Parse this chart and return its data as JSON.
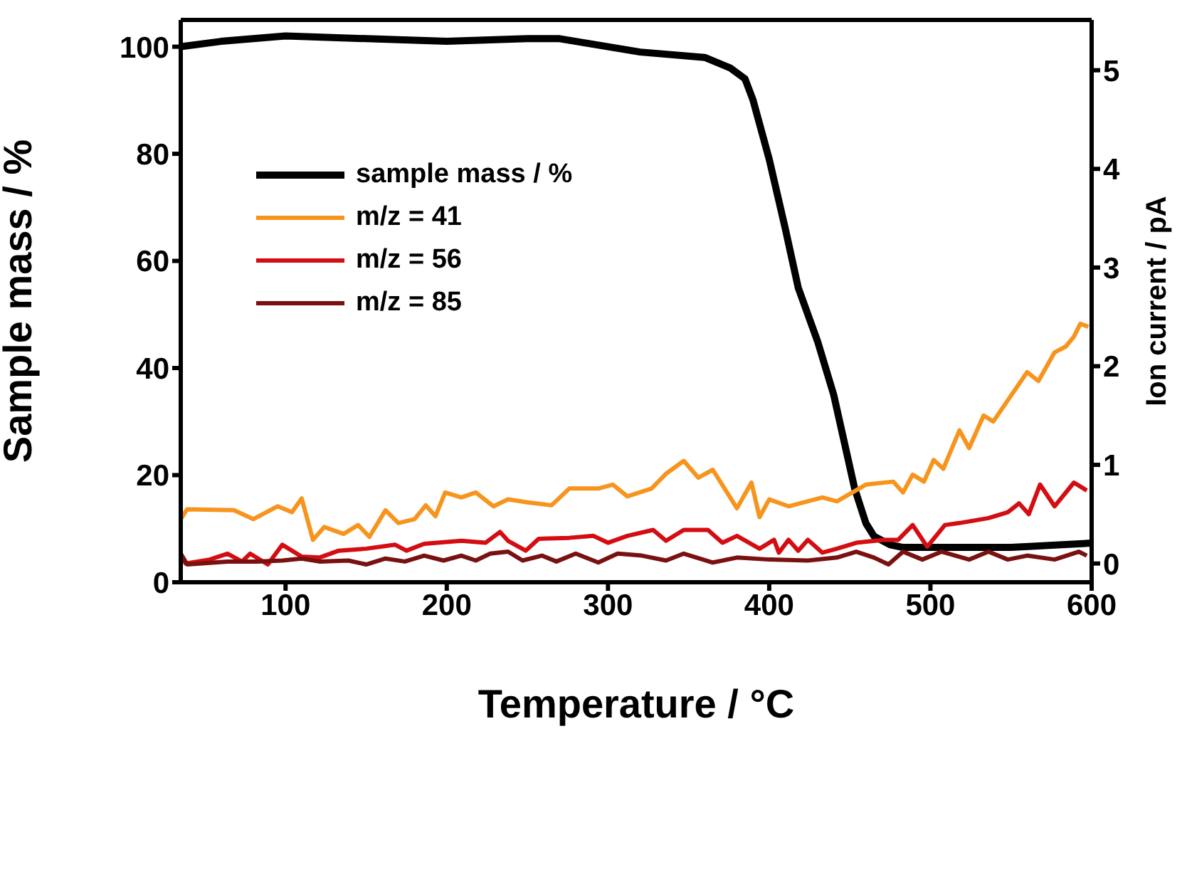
{
  "chart_data": {
    "type": "line",
    "xlabel": "Temperature / °C",
    "ylabel": "Sample mass / %",
    "y2label": "Ion current / pA",
    "xlim": [
      35,
      600
    ],
    "xticks": [
      100,
      200,
      300,
      400,
      500,
      600
    ],
    "ylim": [
      0,
      105
    ],
    "yticks": [
      0,
      20,
      40,
      60,
      80,
      100
    ],
    "y2lim": [
      -0.19,
      5.51
    ],
    "y2ticks": [
      0,
      1,
      2,
      3,
      4,
      5
    ],
    "legend": "top left",
    "marker": "none",
    "line_style": "solid",
    "series": [
      {
        "name": "sample mass / %",
        "color": "#000000",
        "x": [
          35,
          60,
          100,
          150,
          200,
          250,
          270,
          320,
          360,
          376,
          385,
          390,
          400,
          410,
          418,
          430,
          440,
          453,
          460,
          465,
          475,
          483,
          550,
          600
        ],
        "values": [
          100,
          101,
          102,
          101.5,
          101,
          101.5,
          101.5,
          99,
          98,
          96,
          94,
          90,
          79,
          66,
          55,
          45,
          35,
          17.5,
          11,
          8.6,
          7,
          6.5,
          6.5,
          7.3
        ]
      },
      {
        "name": "m/z = 41",
        "color": "#f7941d",
        "axis": "y2",
        "x": [
          35,
          39,
          68,
          80,
          95,
          104,
          110,
          117,
          124,
          136,
          145,
          152,
          162,
          170,
          180,
          187,
          193,
          199,
          209,
          218,
          229,
          238,
          250,
          265,
          276,
          294,
          303,
          312,
          327,
          336,
          347,
          356,
          365,
          380,
          389,
          394,
          400,
          412,
          433,
          442,
          460,
          477,
          483,
          489,
          496,
          502,
          508,
          518,
          524,
          533,
          539,
          560,
          567,
          577,
          584,
          589,
          593,
          598
        ],
        "values": [
          0.45,
          0.55,
          0.54,
          0.45,
          0.58,
          0.52,
          0.66,
          0.24,
          0.37,
          0.3,
          0.39,
          0.27,
          0.54,
          0.41,
          0.45,
          0.59,
          0.48,
          0.72,
          0.67,
          0.72,
          0.58,
          0.65,
          0.62,
          0.59,
          0.76,
          0.76,
          0.8,
          0.68,
          0.76,
          0.91,
          1.04,
          0.87,
          0.95,
          0.56,
          0.82,
          0.47,
          0.65,
          0.58,
          0.67,
          0.63,
          0.8,
          0.83,
          0.72,
          0.9,
          0.83,
          1.05,
          0.96,
          1.35,
          1.17,
          1.5,
          1.44,
          1.94,
          1.85,
          2.14,
          2.2,
          2.3,
          2.43,
          2.4
        ]
      },
      {
        "name": "m/z = 56",
        "color": "#d40d12",
        "axis": "y2",
        "x": [
          35,
          38,
          53,
          64,
          73,
          78,
          89,
          98,
          110,
          121,
          133,
          150,
          168,
          175,
          186,
          209,
          224,
          233,
          238,
          249,
          257,
          276,
          291,
          300,
          312,
          328,
          336,
          347,
          362,
          371,
          380,
          394,
          403,
          406,
          412,
          418,
          424,
          433,
          442,
          454,
          471,
          480,
          489,
          498,
          509,
          518,
          536,
          548,
          555,
          561,
          568,
          577,
          589,
          597
        ],
        "values": [
          0.08,
          0,
          0.04,
          0.1,
          0.02,
          0.1,
          -0.01,
          0.19,
          0.07,
          0.06,
          0.13,
          0.15,
          0.19,
          0.13,
          0.2,
          0.23,
          0.21,
          0.32,
          0.23,
          0.13,
          0.25,
          0.26,
          0.28,
          0.21,
          0.28,
          0.34,
          0.23,
          0.34,
          0.34,
          0.21,
          0.28,
          0.15,
          0.24,
          0.11,
          0.24,
          0.13,
          0.24,
          0.11,
          0.15,
          0.21,
          0.24,
          0.24,
          0.39,
          0.17,
          0.39,
          0.41,
          0.46,
          0.52,
          0.61,
          0.5,
          0.8,
          0.58,
          0.82,
          0.74
        ]
      },
      {
        "name": "m/z = 85",
        "color": "#7a1111",
        "axis": "y2",
        "x": [
          35,
          39,
          64,
          82,
          98,
          110,
          121,
          139,
          150,
          162,
          174,
          186,
          198,
          209,
          218,
          227,
          238,
          247,
          259,
          268,
          280,
          294,
          306,
          321,
          336,
          347,
          365,
          380,
          400,
          424,
          442,
          454,
          465,
          474,
          483,
          495,
          507,
          524,
          536,
          548,
          560,
          577,
          592,
          597
        ],
        "values": [
          0.1,
          -0.01,
          0.02,
          0.02,
          0.03,
          0.05,
          0.02,
          0.03,
          -0.01,
          0.05,
          0.02,
          0.08,
          0.03,
          0.08,
          0.03,
          0.1,
          0.12,
          0.03,
          0.08,
          0.02,
          0.1,
          0.01,
          0.1,
          0.08,
          0.03,
          0.1,
          0.01,
          0.06,
          0.04,
          0.03,
          0.06,
          0.12,
          0.06,
          -0.01,
          0.12,
          0.04,
          0.12,
          0.04,
          0.12,
          0.04,
          0.08,
          0.04,
          0.12,
          0.08
        ]
      }
    ]
  }
}
